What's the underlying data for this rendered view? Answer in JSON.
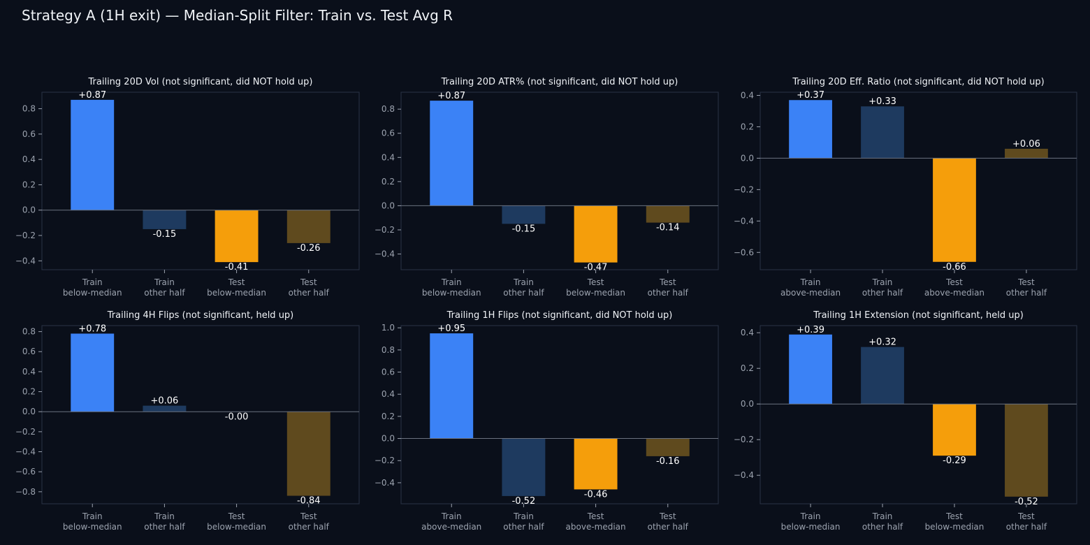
{
  "page_title": "Strategy A (1H exit) — Median-Split Filter: Train vs. Test Avg R",
  "colors": {
    "background": "#0a0f1a",
    "train_selected": "#3b82f6",
    "train_other": "#1e3a5f",
    "test_selected": "#f59e0b",
    "test_other": "#5f4a1e",
    "axis": "#2a3345",
    "zero_line": "#6b7280",
    "tick_text": "#9ca3af",
    "label_text": "#ffffff"
  },
  "chart_data": [
    {
      "type": "bar",
      "title": "Trailing 20D Vol (not significant, did NOT hold up)",
      "categories": [
        "Train\nbelow-median",
        "Train\nother half",
        "Test\nbelow-median",
        "Test\nother half"
      ],
      "values": [
        0.87,
        -0.15,
        -0.41,
        -0.26
      ],
      "data_labels": [
        "+0.87",
        "-0.15",
        "-0.41",
        "-0.26"
      ],
      "ylim": [
        -0.47,
        0.93
      ],
      "yticks": [
        -0.4,
        -0.2,
        0.0,
        0.2,
        0.4,
        0.6,
        0.8
      ],
      "ytick_labels": [
        "−0.4",
        "−0.2",
        "0.0",
        "0.2",
        "0.4",
        "0.6",
        "0.8"
      ]
    },
    {
      "type": "bar",
      "title": "Trailing 20D ATR% (not significant, did NOT hold up)",
      "categories": [
        "Train\nbelow-median",
        "Train\nother half",
        "Test\nbelow-median",
        "Test\nother half"
      ],
      "values": [
        0.87,
        -0.15,
        -0.47,
        -0.14
      ],
      "data_labels": [
        "+0.87",
        "-0.15",
        "-0.47",
        "-0.14"
      ],
      "ylim": [
        -0.53,
        0.94
      ],
      "yticks": [
        -0.4,
        -0.2,
        0.0,
        0.2,
        0.4,
        0.6,
        0.8
      ],
      "ytick_labels": [
        "−0.4",
        "−0.2",
        "0.0",
        "0.2",
        "0.4",
        "0.6",
        "0.8"
      ]
    },
    {
      "type": "bar",
      "title": "Trailing 20D Eff. Ratio (not significant, did NOT hold up)",
      "categories": [
        "Train\nabove-median",
        "Train\nother half",
        "Test\nabove-median",
        "Test\nother half"
      ],
      "values": [
        0.37,
        0.33,
        -0.66,
        0.06
      ],
      "data_labels": [
        "+0.37",
        "+0.33",
        "-0.66",
        "+0.06"
      ],
      "ylim": [
        -0.71,
        0.42
      ],
      "yticks": [
        -0.6,
        -0.4,
        -0.2,
        0.0,
        0.2,
        0.4
      ],
      "ytick_labels": [
        "−0.6",
        "−0.4",
        "−0.2",
        "0.0",
        "0.2",
        "0.4"
      ]
    },
    {
      "type": "bar",
      "title": "Trailing 4H Flips (not significant, held up)",
      "categories": [
        "Train\nbelow-median",
        "Train\nother half",
        "Test\nbelow-median",
        "Test\nother half"
      ],
      "values": [
        0.78,
        0.06,
        -0.001,
        -0.84
      ],
      "data_labels": [
        "+0.78",
        "+0.06",
        "-0.00",
        "-0.84"
      ],
      "ylim": [
        -0.92,
        0.86
      ],
      "yticks": [
        -0.8,
        -0.6,
        -0.4,
        -0.2,
        0.0,
        0.2,
        0.4,
        0.6,
        0.8
      ],
      "ytick_labels": [
        "−0.8",
        "−0.6",
        "−0.4",
        "−0.2",
        "0.0",
        "0.2",
        "0.4",
        "0.6",
        "0.8"
      ]
    },
    {
      "type": "bar",
      "title": "Trailing 1H Flips (not significant, did NOT hold up)",
      "categories": [
        "Train\nabove-median",
        "Train\nother half",
        "Test\nabove-median",
        "Test\nother half"
      ],
      "values": [
        0.95,
        -0.52,
        -0.46,
        -0.16
      ],
      "data_labels": [
        "+0.95",
        "-0.52",
        "-0.46",
        "-0.16"
      ],
      "ylim": [
        -0.59,
        1.02
      ],
      "yticks": [
        -0.4,
        -0.2,
        0.0,
        0.2,
        0.4,
        0.6,
        0.8,
        1.0
      ],
      "ytick_labels": [
        "−0.4",
        "−0.2",
        "0.0",
        "0.2",
        "0.4",
        "0.6",
        "0.8",
        "1.0"
      ]
    },
    {
      "type": "bar",
      "title": "Trailing 1H Extension (not significant, held up)",
      "categories": [
        "Train\nbelow-median",
        "Train\nother half",
        "Test\nbelow-median",
        "Test\nother half"
      ],
      "values": [
        0.39,
        0.32,
        -0.29,
        -0.52
      ],
      "data_labels": [
        "+0.39",
        "+0.32",
        "-0.29",
        "-0.52"
      ],
      "ylim": [
        -0.56,
        0.44
      ],
      "yticks": [
        -0.4,
        -0.2,
        0.0,
        0.2,
        0.4
      ],
      "ytick_labels": [
        "−0.4",
        "−0.2",
        "0.0",
        "0.2",
        "0.4"
      ]
    }
  ]
}
